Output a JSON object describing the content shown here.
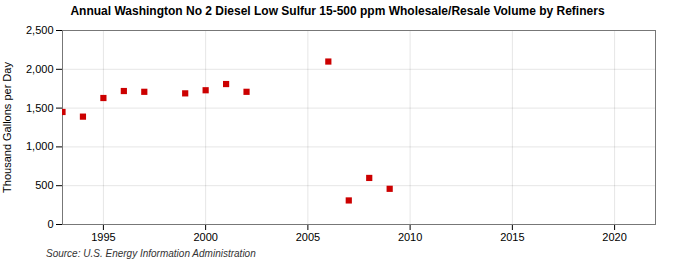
{
  "chart_data": {
    "type": "scatter",
    "title": "Annual Washington No 2 Diesel Low Sulfur 15-500 ppm Wholesale/Resale Volume by Refiners",
    "ylabel": "Thousand Gallons per Day",
    "annotation": "Source: U.S. Energy Information Administration",
    "x": [
      1993,
      1994,
      1995,
      1996,
      1997,
      1999,
      2000,
      2001,
      2002,
      2006,
      2007,
      2008,
      2009
    ],
    "values": [
      1450,
      1390,
      1630,
      1720,
      1710,
      1690,
      1730,
      1810,
      1710,
      2100,
      310,
      600,
      460
    ],
    "color": "#cc0000",
    "marker": "square",
    "xlim": [
      1993,
      2022
    ],
    "ylim": [
      0,
      2500
    ],
    "xticks": [
      1995,
      2000,
      2005,
      2010,
      2015,
      2020
    ],
    "yticks": [
      0,
      500,
      {
        "value": 1000,
        "label": "1,000"
      },
      {
        "value": 1500,
        "label": "1,500"
      },
      {
        "value": 2000,
        "label": "2,000"
      },
      {
        "value": 2500,
        "label": "2,500"
      }
    ],
    "grid": true
  }
}
